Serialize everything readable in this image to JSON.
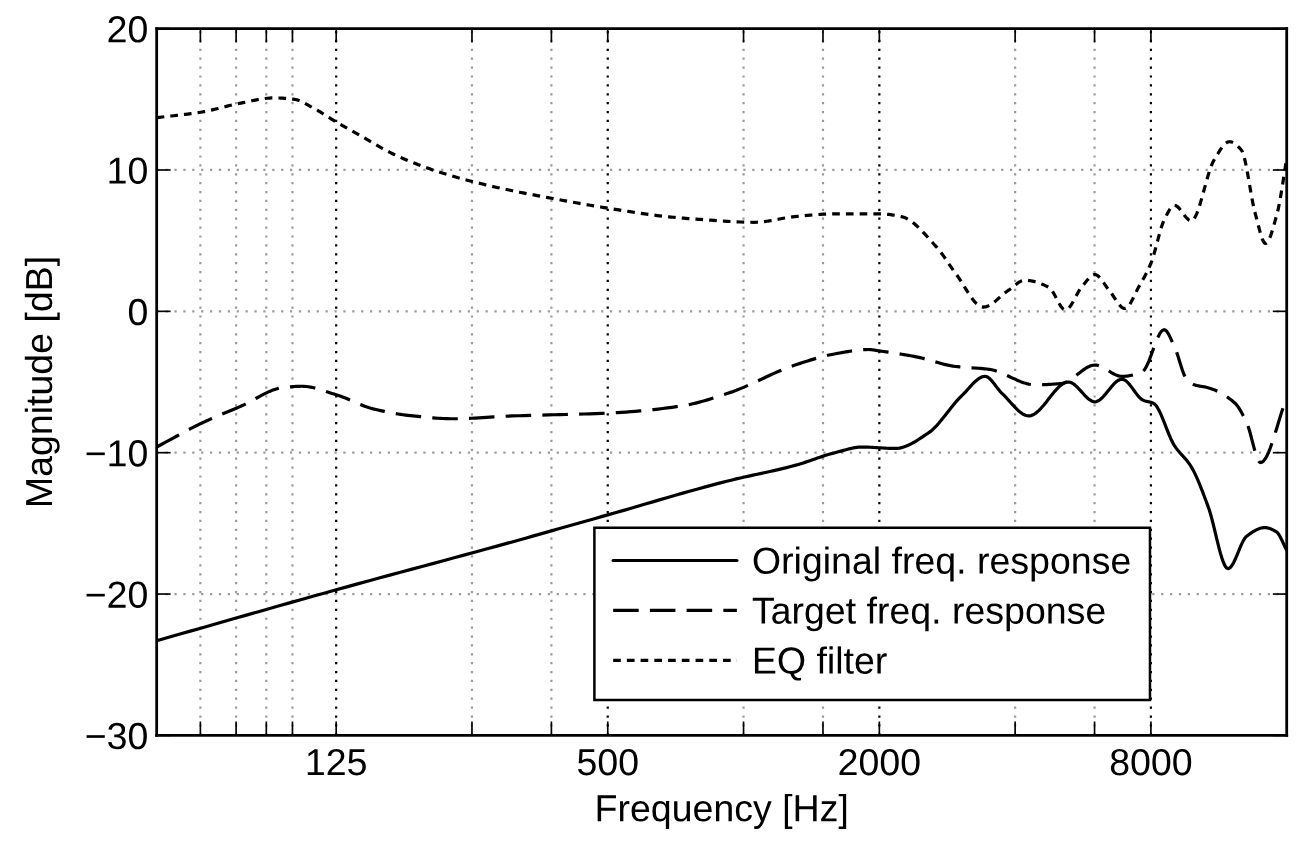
{
  "chart_data": {
    "type": "line",
    "xlabel": "Frequency [Hz]",
    "ylabel": "Magnitude [dB]",
    "log": "x",
    "grid": true,
    "legend": "bottom right",
    "xlim": [
      50,
      16000
    ],
    "ylim": [
      -30,
      20
    ],
    "xticks": [
      {
        "value": 62.5,
        "label": null
      },
      {
        "value": 75,
        "label": null
      },
      {
        "value": 87.5,
        "label": null
      },
      {
        "value": 100,
        "label": null
      },
      125,
      {
        "value": 250,
        "label": null
      },
      {
        "value": 375,
        "label": null
      },
      500,
      {
        "value": 1000,
        "label": null
      },
      {
        "value": 1500,
        "label": null
      },
      2000,
      {
        "value": 4000,
        "label": null
      },
      {
        "value": 6000,
        "label": null
      },
      8000
    ],
    "yticks": [
      -30,
      -20,
      -10,
      0,
      10,
      20
    ],
    "series": [
      {
        "name": "Original freq. response",
        "color": "#000000",
        "line_style": "solid",
        "x": [
          50,
          125,
          300,
          500,
          923,
          1300,
          1595,
          1830,
          2170,
          2570,
          3040,
          3430,
          3740,
          4290,
          5250,
          6010,
          6900,
          7700,
          8100,
          9020,
          9830,
          10710,
          11860,
          13050,
          14300,
          15180,
          16000
        ],
        "values": [
          -23.3,
          -19.7,
          -16.4,
          -14.4,
          -12.0,
          -10.9,
          -10.0,
          -9.6,
          -9.7,
          -8.6,
          -6.0,
          -4.6,
          -5.8,
          -7.4,
          -5.0,
          -6.4,
          -4.8,
          -6.3,
          -6.5,
          -9.5,
          -11.0,
          -13.8,
          -18.2,
          -15.9,
          -15.3,
          -15.6,
          -16.9
        ]
      },
      {
        "name": "Target freq. response",
        "color": "#000000",
        "line_style": "dashed",
        "x": [
          50,
          63,
          77,
          95,
          105,
          125,
          151,
          185,
          227,
          307,
          500,
          727,
          923,
          1300,
          1600,
          1890,
          2000,
          2400,
          2950,
          3500,
          4430,
          5070,
          6010,
          6900,
          7640,
          8560,
          9020,
          9600,
          10000,
          10700,
          12290,
          13050,
          14000,
          16000
        ],
        "values": [
          -9.6,
          -7.9,
          -6.7,
          -5.4,
          -5.3,
          -5.9,
          -6.9,
          -7.4,
          -7.6,
          -7.4,
          -7.2,
          -6.7,
          -5.8,
          -3.8,
          -3.0,
          -2.7,
          -2.8,
          -3.2,
          -3.9,
          -4.1,
          -5.2,
          -5.1,
          -3.8,
          -4.6,
          -4.3,
          -1.3,
          -2.5,
          -4.8,
          -5.2,
          -5.4,
          -6.5,
          -7.9,
          -10.7,
          -6.1
        ]
      },
      {
        "name": "EQ filter",
        "color": "#000000",
        "line_style": "dotted",
        "x": [
          50,
          63,
          76,
          91,
          101,
          111,
          125,
          142,
          168,
          214,
          281,
          375,
          500,
          676,
          803,
          1055,
          1300,
          1600,
          2000,
          2240,
          2670,
          2950,
          3400,
          3870,
          4200,
          4750,
          5170,
          5640,
          6010,
          6460,
          7000,
          7540,
          8000,
          8570,
          9020,
          9830,
          11040,
          11940,
          12700,
          13630,
          14360,
          15230,
          16000
        ],
        "values": [
          13.7,
          14.1,
          14.7,
          15.1,
          15.0,
          14.4,
          13.4,
          12.4,
          11.1,
          9.8,
          8.8,
          8.0,
          7.3,
          6.7,
          6.5,
          6.3,
          6.7,
          6.9,
          6.9,
          6.7,
          4.6,
          2.7,
          0.3,
          1.5,
          2.2,
          1.7,
          0.1,
          1.8,
          2.6,
          1.5,
          0.2,
          1.8,
          3.4,
          6.5,
          7.5,
          6.4,
          10.7,
          12.0,
          11.4,
          6.9,
          4.8,
          6.9,
          10.8
        ]
      }
    ]
  }
}
